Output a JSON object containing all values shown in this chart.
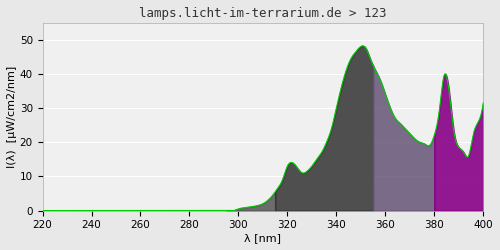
{
  "title": "lamps.licht-im-terrarium.de > 123",
  "xlabel": "λ [nm]",
  "ylabel": "I(λ)  [μW/cm2/nm]",
  "xlim": [
    220,
    400
  ],
  "ylim": [
    0,
    55
  ],
  "yticks": [
    0,
    10,
    20,
    30,
    40,
    50
  ],
  "xticks": [
    220,
    240,
    260,
    280,
    300,
    320,
    340,
    360,
    380,
    400
  ],
  "bg_color": "#e8e8e8",
  "plot_bg_color": "#f0f0f0",
  "grid_color": "#ffffff",
  "green_line_color": "#00cc00",
  "wavelengths": [
    220,
    222,
    224,
    226,
    228,
    230,
    232,
    234,
    236,
    238,
    240,
    242,
    244,
    246,
    248,
    250,
    252,
    254,
    256,
    258,
    260,
    262,
    264,
    266,
    268,
    270,
    272,
    274,
    276,
    278,
    280,
    282,
    284,
    286,
    288,
    290,
    292,
    294,
    296,
    298,
    300,
    302,
    304,
    306,
    308,
    310,
    312,
    314,
    316,
    318,
    320,
    322,
    324,
    326,
    328,
    330,
    332,
    334,
    336,
    338,
    340,
    342,
    344,
    346,
    348,
    350,
    352,
    354,
    356,
    358,
    360,
    362,
    364,
    366,
    368,
    370,
    372,
    374,
    376,
    378,
    380,
    382,
    384,
    386,
    388,
    390,
    392,
    394,
    396,
    398,
    400
  ],
  "spectrum": [
    0,
    0,
    0,
    0,
    0,
    0,
    0,
    0,
    0,
    0,
    0,
    0,
    0,
    0,
    0,
    0,
    0,
    0,
    0,
    0,
    0,
    0,
    0,
    0,
    0,
    0,
    0,
    0,
    0,
    0,
    0,
    0,
    0,
    0,
    0,
    0,
    0,
    0,
    0,
    0,
    0.5,
    0.8,
    1.0,
    1.2,
    1.5,
    2.0,
    3.0,
    4.5,
    6.5,
    9.0,
    13.0,
    14.0,
    12.5,
    11.0,
    11.5,
    13.0,
    15.0,
    17.0,
    20.0,
    24.0,
    30.0,
    36.0,
    41.0,
    44.5,
    46.5,
    48.0,
    47.5,
    44.0,
    41.0,
    38.0,
    34.0,
    30.0,
    27.0,
    25.5,
    24.0,
    22.5,
    21.0,
    20.0,
    19.5,
    19.0,
    22.0,
    29.0,
    39.5,
    35.0,
    23.0,
    18.5,
    17.0,
    16.0,
    22.5,
    26.0,
    31.5
  ],
  "zone1_start": 295,
  "zone1_end": 315,
  "zone1_color": "#555555",
  "zone1_alpha": 0.85,
  "zone2_start": 315,
  "zone2_end": 355,
  "zone2_color": "#333333",
  "zone2_alpha": 0.85,
  "zone3_start": 355,
  "zone3_end": 380,
  "zone3_color": "#665577",
  "zone3_alpha": 0.85,
  "zone4_start": 380,
  "zone4_end": 400,
  "zone4_color": "#880088",
  "zone4_alpha": 0.9,
  "title_fontsize": 9,
  "label_fontsize": 8,
  "tick_fontsize": 7.5
}
